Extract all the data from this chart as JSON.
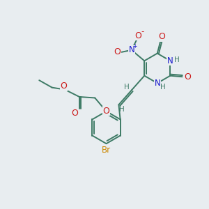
{
  "background_color": "#e8edf0",
  "bond_color": "#3d7a65",
  "bond_width": 1.4,
  "N_color": "#1a1acc",
  "O_color": "#cc1a1a",
  "Br_color": "#cc8800",
  "H_color": "#3d7a65",
  "figsize": [
    3.0,
    3.0
  ],
  "dpi": 100,
  "xlim": [
    0,
    10
  ],
  "ylim": [
    0,
    10
  ]
}
